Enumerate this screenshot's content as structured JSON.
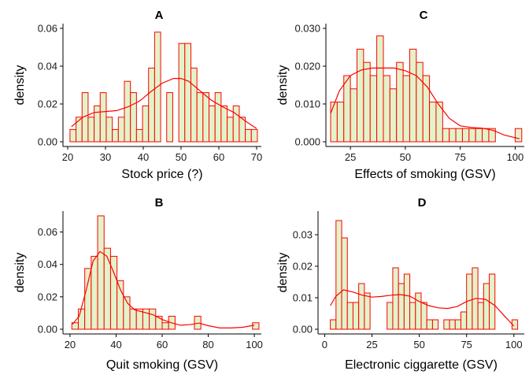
{
  "colors": {
    "bar_fill": "#e3f2c9",
    "bar_stroke": "#ff0000",
    "density_line": "#ff0000",
    "axis": "#000000"
  },
  "chart_data": [
    {
      "id": "A",
      "type": "bar",
      "title": "A",
      "xlabel": "Stock price (?)",
      "ylabel": "density",
      "xlim": [
        20,
        70
      ],
      "ylim": [
        0,
        0.06
      ],
      "xticks": [
        20,
        30,
        40,
        50,
        60,
        70
      ],
      "yticks": [
        0.0,
        0.02,
        0.04,
        0.06
      ],
      "ytick_labels": [
        "0.00",
        "0.02",
        "0.04",
        "0.06"
      ],
      "grid": false,
      "bins": [
        [
          20.6,
          22.2,
          0.0065
        ],
        [
          22.2,
          23.8,
          0.013
        ],
        [
          23.8,
          25.4,
          0.026
        ],
        [
          25.4,
          27.0,
          0.013
        ],
        [
          27.0,
          28.6,
          0.019
        ],
        [
          28.6,
          30.2,
          0.026
        ],
        [
          30.2,
          31.8,
          0.013
        ],
        [
          31.8,
          33.4,
          0.0065
        ],
        [
          33.4,
          35.0,
          0.013
        ],
        [
          35.0,
          36.6,
          0.032
        ],
        [
          36.6,
          38.2,
          0.026
        ],
        [
          38.2,
          39.8,
          0.0065
        ],
        [
          39.8,
          41.4,
          0.019
        ],
        [
          41.4,
          43.0,
          0.039
        ],
        [
          43.0,
          44.6,
          0.058
        ],
        [
          44.6,
          46.2,
          0.0
        ],
        [
          46.2,
          47.8,
          0.026
        ],
        [
          47.8,
          49.4,
          0.0
        ],
        [
          49.4,
          51.0,
          0.052
        ],
        [
          51.0,
          52.6,
          0.052
        ],
        [
          52.6,
          54.2,
          0.039
        ],
        [
          54.2,
          55.8,
          0.026
        ],
        [
          55.8,
          57.4,
          0.026
        ],
        [
          57.4,
          59.0,
          0.019
        ],
        [
          59.0,
          60.6,
          0.026
        ],
        [
          60.6,
          62.2,
          0.019
        ],
        [
          62.2,
          63.8,
          0.013
        ],
        [
          63.8,
          65.4,
          0.019
        ],
        [
          65.4,
          67.0,
          0.013
        ],
        [
          67.0,
          68.6,
          0.0065
        ],
        [
          68.6,
          70.2,
          0.0065
        ]
      ],
      "density_curve": {
        "x": [
          21,
          24,
          27,
          30,
          33,
          36,
          39,
          42,
          45,
          48,
          50,
          52,
          55,
          58,
          61,
          64,
          67,
          70
        ],
        "y": [
          0.008,
          0.013,
          0.0155,
          0.016,
          0.0165,
          0.0185,
          0.0215,
          0.0265,
          0.031,
          0.0335,
          0.0335,
          0.032,
          0.027,
          0.022,
          0.0185,
          0.0155,
          0.011,
          0.007
        ]
      }
    },
    {
      "id": "C",
      "type": "bar",
      "title": "C",
      "xlabel": "Effects of smoking (GSV)",
      "ylabel": "density",
      "xlim": [
        16,
        102
      ],
      "ylim": [
        0,
        0.03
      ],
      "xticks": [
        25,
        50,
        75,
        100
      ],
      "yticks": [
        0.0,
        0.01,
        0.02,
        0.03
      ],
      "ytick_labels": [
        "0.000",
        "0.010",
        "0.020",
        "0.030"
      ],
      "grid": false,
      "bins": [
        [
          16,
          19,
          0.0105
        ],
        [
          19,
          22,
          0.0105
        ],
        [
          22,
          25,
          0.0175
        ],
        [
          25,
          28,
          0.014
        ],
        [
          28,
          31,
          0.0245
        ],
        [
          31,
          34,
          0.021
        ],
        [
          34,
          37,
          0.0175
        ],
        [
          37,
          40,
          0.028
        ],
        [
          40,
          43,
          0.0175
        ],
        [
          43,
          46,
          0.014
        ],
        [
          46,
          49,
          0.021
        ],
        [
          49,
          52,
          0.0175
        ],
        [
          52,
          55,
          0.0245
        ],
        [
          55,
          58,
          0.021
        ],
        [
          58,
          61,
          0.0175
        ],
        [
          61,
          64,
          0.0105
        ],
        [
          64,
          67,
          0.0105
        ],
        [
          67,
          70,
          0.0035
        ],
        [
          70,
          73,
          0.0035
        ],
        [
          73,
          76,
          0.0035
        ],
        [
          76,
          79,
          0.0035
        ],
        [
          79,
          82,
          0.0035
        ],
        [
          82,
          85,
          0.0035
        ],
        [
          85,
          88,
          0.0035
        ],
        [
          88,
          91,
          0.0035
        ],
        [
          91,
          94,
          0.0
        ],
        [
          94,
          97,
          0.0
        ],
        [
          97,
          100,
          0.0
        ],
        [
          100,
          103,
          0.0035
        ]
      ],
      "density_curve": {
        "x": [
          16,
          20,
          25,
          30,
          35,
          40,
          45,
          50,
          55,
          60,
          65,
          70,
          75,
          80,
          85,
          90,
          95,
          102
        ],
        "y": [
          0.0075,
          0.0135,
          0.0175,
          0.019,
          0.0195,
          0.0195,
          0.0195,
          0.0188,
          0.0175,
          0.0145,
          0.01,
          0.0062,
          0.0042,
          0.0038,
          0.0036,
          0.003,
          0.0018,
          0.0008
        ]
      }
    },
    {
      "id": "B",
      "type": "bar",
      "title": "B",
      "xlabel": "Quit smoking (GSV)",
      "ylabel": "density",
      "xlim": [
        19,
        101
      ],
      "ylim": [
        0,
        0.07
      ],
      "xticks": [
        20,
        40,
        60,
        80,
        100
      ],
      "yticks": [
        0.0,
        0.02,
        0.04,
        0.06
      ],
      "ytick_labels": [
        "0.00",
        "0.02",
        "0.04",
        "0.06"
      ],
      "grid": false,
      "bins": [
        [
          20.8,
          23.6,
          0.004
        ],
        [
          23.6,
          26.4,
          0.0125
        ],
        [
          26.4,
          29.2,
          0.0375
        ],
        [
          29.2,
          32.0,
          0.045
        ],
        [
          32.0,
          34.8,
          0.07
        ],
        [
          34.8,
          37.6,
          0.05
        ],
        [
          37.6,
          40.4,
          0.045
        ],
        [
          40.4,
          43.2,
          0.03
        ],
        [
          43.2,
          46.0,
          0.02
        ],
        [
          46.0,
          48.8,
          0.0125
        ],
        [
          48.8,
          51.6,
          0.0125
        ],
        [
          51.6,
          54.4,
          0.0125
        ],
        [
          54.4,
          57.2,
          0.0125
        ],
        [
          57.2,
          60.0,
          0.008
        ],
        [
          60.0,
          62.8,
          0.004
        ],
        [
          62.8,
          65.6,
          0.008
        ],
        [
          65.6,
          68.4,
          0.0
        ],
        [
          68.4,
          71.2,
          0.0
        ],
        [
          71.2,
          74.0,
          0.0
        ],
        [
          74.0,
          76.8,
          0.008
        ],
        [
          76.8,
          79.6,
          0.0
        ],
        [
          79.6,
          82.4,
          0.0
        ],
        [
          82.4,
          85.2,
          0.0
        ],
        [
          85.2,
          88.0,
          0.0
        ],
        [
          88.0,
          90.8,
          0.0
        ],
        [
          90.8,
          93.6,
          0.0
        ],
        [
          93.6,
          96.4,
          0.0
        ],
        [
          96.4,
          99.2,
          0.0
        ],
        [
          99.2,
          102.0,
          0.004
        ]
      ],
      "density_curve": {
        "x": [
          21,
          24,
          27,
          30,
          33,
          36,
          39,
          42,
          45,
          48,
          52,
          56,
          60,
          64,
          68,
          72,
          76,
          80,
          85,
          90,
          95,
          100
        ],
        "y": [
          0.003,
          0.008,
          0.024,
          0.042,
          0.048,
          0.045,
          0.035,
          0.024,
          0.016,
          0.012,
          0.0105,
          0.009,
          0.006,
          0.004,
          0.0025,
          0.0028,
          0.0038,
          0.0022,
          0.0008,
          0.0008,
          0.0012,
          0.0025
        ]
      }
    },
    {
      "id": "D",
      "type": "bar",
      "title": "D",
      "xlabel": "Electronic ciggarette (GSV)",
      "ylabel": "density",
      "xlim": [
        -1,
        103
      ],
      "ylim": [
        0,
        0.036
      ],
      "xticks": [
        0,
        25,
        50,
        75,
        100
      ],
      "yticks": [
        0.0,
        0.01,
        0.02,
        0.03
      ],
      "ytick_labels": [
        "0.00",
        "0.01",
        "0.02",
        "0.03"
      ],
      "grid": false,
      "bins": [
        [
          3,
          6,
          0.003
        ],
        [
          6,
          9,
          0.0345
        ],
        [
          9,
          12,
          0.029
        ],
        [
          12,
          15,
          0.0085
        ],
        [
          15,
          18,
          0.0085
        ],
        [
          18,
          21,
          0.0145
        ],
        [
          21,
          24,
          0.0115
        ],
        [
          24,
          27,
          0.0
        ],
        [
          27,
          30,
          0.0
        ],
        [
          30,
          33,
          0.0
        ],
        [
          33,
          36,
          0.0085
        ],
        [
          36,
          39,
          0.0195
        ],
        [
          39,
          42,
          0.0145
        ],
        [
          42,
          45,
          0.0175
        ],
        [
          45,
          48,
          0.0085
        ],
        [
          48,
          51,
          0.0115
        ],
        [
          51,
          54,
          0.0085
        ],
        [
          54,
          57,
          0.003
        ],
        [
          57,
          60,
          0.003
        ],
        [
          60,
          63,
          0.0
        ],
        [
          63,
          66,
          0.003
        ],
        [
          66,
          69,
          0.003
        ],
        [
          69,
          72,
          0.003
        ],
        [
          72,
          75,
          0.0055
        ],
        [
          75,
          78,
          0.0175
        ],
        [
          78,
          81,
          0.0195
        ],
        [
          81,
          84,
          0.0085
        ],
        [
          84,
          87,
          0.0145
        ],
        [
          87,
          90,
          0.0175
        ],
        [
          90,
          93,
          0.0
        ],
        [
          93,
          96,
          0.0
        ],
        [
          96,
          99,
          0.0
        ],
        [
          99,
          102,
          0.003
        ]
      ],
      "density_curve": {
        "x": [
          3,
          6,
          10,
          15,
          20,
          25,
          30,
          35,
          40,
          45,
          50,
          55,
          60,
          65,
          70,
          75,
          80,
          85,
          90,
          95,
          100
        ],
        "y": [
          0.0075,
          0.0105,
          0.0125,
          0.0118,
          0.0108,
          0.0102,
          0.0104,
          0.0108,
          0.011,
          0.0105,
          0.0088,
          0.0075,
          0.0068,
          0.0066,
          0.0072,
          0.0088,
          0.0098,
          0.0095,
          0.0075,
          0.0042,
          0.001
        ]
      }
    }
  ]
}
